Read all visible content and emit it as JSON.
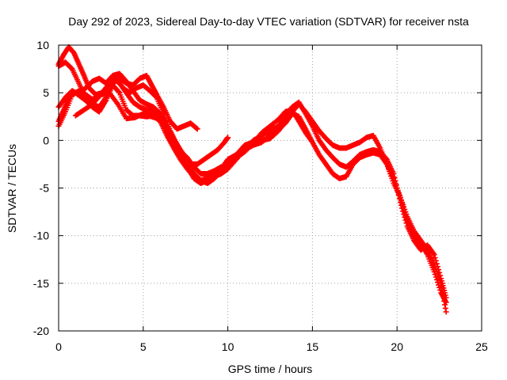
{
  "chart_data": {
    "type": "scatter",
    "title": "Day 292 of 2023, Sidereal Day-to-day VTEC variation (SDTVAR) for receiver nsta",
    "xlabel": "GPS time / hours",
    "ylabel": "SDTVAR / TECUs",
    "xlim": [
      0,
      25
    ],
    "ylim": [
      -20,
      10
    ],
    "xticks": [
      0,
      5,
      10,
      15,
      20,
      25
    ],
    "yticks": [
      -20,
      -15,
      -10,
      -5,
      0,
      5,
      10
    ],
    "xtick_labels": [
      "0",
      "5",
      "10",
      "15",
      "20",
      "25"
    ],
    "ytick_labels": [
      "-20",
      "-15",
      "-10",
      "-5",
      "0",
      "5",
      "10"
    ],
    "grid": true,
    "marker": "+",
    "series": [
      {
        "name": "track-1",
        "color": "#ff0000",
        "points": [
          [
            0.0,
            2.0
          ],
          [
            0.3,
            3.2
          ],
          [
            0.6,
            4.5
          ],
          [
            1.0,
            5.0
          ],
          [
            1.3,
            4.6
          ],
          [
            1.6,
            4.2
          ],
          [
            2.0,
            3.5
          ],
          [
            2.4,
            3.0
          ],
          [
            2.8,
            4.2
          ],
          [
            3.2,
            5.8
          ],
          [
            3.6,
            5.0
          ],
          [
            4.0,
            3.2
          ],
          [
            4.4,
            2.6
          ],
          [
            4.8,
            2.6
          ],
          [
            5.2,
            2.5
          ],
          [
            5.6,
            2.6
          ],
          [
            6.0,
            2.0
          ],
          [
            6.4,
            0.5
          ],
          [
            6.8,
            -0.8
          ],
          [
            7.2,
            -2.0
          ],
          [
            7.6,
            -3.0
          ],
          [
            8.0,
            -3.8
          ],
          [
            8.4,
            -4.2
          ],
          [
            8.8,
            -4.0
          ],
          [
            9.2,
            -3.5
          ],
          [
            9.6,
            -3.0
          ],
          [
            10.0,
            -2.0
          ],
          [
            10.5,
            -1.5
          ],
          [
            11.0,
            -0.5
          ],
          [
            11.5,
            -0.2
          ],
          [
            12.0,
            0.0
          ],
          [
            12.5,
            0.2
          ],
          [
            13.0,
            1.0
          ],
          [
            13.4,
            2.0
          ],
          [
            13.8,
            3.0
          ],
          [
            14.2,
            3.8
          ],
          [
            14.6,
            3.0
          ],
          [
            15.0,
            2.0
          ],
          [
            15.4,
            1.0
          ],
          [
            15.8,
            0.2
          ],
          [
            16.2,
            -0.5
          ],
          [
            16.6,
            -0.8
          ],
          [
            17.0,
            -0.8
          ],
          [
            17.4,
            -0.5
          ],
          [
            17.8,
            -0.2
          ],
          [
            18.2,
            0.3
          ],
          [
            18.6,
            0.5
          ],
          [
            19.0,
            -0.8
          ],
          [
            19.4,
            -2.5
          ],
          [
            19.8,
            -4.0
          ],
          [
            20.2,
            -6.0
          ],
          [
            20.6,
            -8.0
          ],
          [
            21.0,
            -9.5
          ],
          [
            21.4,
            -10.5
          ],
          [
            21.8,
            -11.5
          ],
          [
            22.2,
            -13.0
          ],
          [
            22.6,
            -15.0
          ],
          [
            22.9,
            -18.0
          ]
        ]
      },
      {
        "name": "track-2",
        "color": "#ff0000",
        "points": [
          [
            0.0,
            1.5
          ],
          [
            0.4,
            3.0
          ],
          [
            0.8,
            4.8
          ],
          [
            1.2,
            5.2
          ],
          [
            1.6,
            4.8
          ],
          [
            2.0,
            4.3
          ],
          [
            2.4,
            4.7
          ],
          [
            2.8,
            5.5
          ],
          [
            3.2,
            6.5
          ],
          [
            3.6,
            6.0
          ],
          [
            4.0,
            5.0
          ],
          [
            4.4,
            4.0
          ],
          [
            4.8,
            3.5
          ],
          [
            5.2,
            3.2
          ],
          [
            5.6,
            3.0
          ],
          [
            6.0,
            2.5
          ],
          [
            6.4,
            1.5
          ],
          [
            6.8,
            0.2
          ],
          [
            7.2,
            -1.0
          ],
          [
            7.6,
            -2.5
          ],
          [
            8.0,
            -3.5
          ],
          [
            8.4,
            -4.2
          ],
          [
            8.8,
            -4.5
          ],
          [
            9.2,
            -4.0
          ],
          [
            9.6,
            -3.2
          ],
          [
            10.0,
            -2.5
          ],
          [
            10.5,
            -1.5
          ],
          [
            11.0,
            -1.0
          ],
          [
            11.5,
            0.0
          ],
          [
            12.0,
            0.5
          ],
          [
            12.5,
            1.0
          ],
          [
            13.0,
            1.5
          ],
          [
            13.4,
            2.5
          ],
          [
            13.8,
            3.5
          ],
          [
            14.2,
            4.0
          ],
          [
            14.6,
            2.8
          ],
          [
            15.0,
            1.5
          ],
          [
            15.4,
            0.0
          ],
          [
            15.8,
            -1.0
          ],
          [
            16.2,
            -1.8
          ],
          [
            16.6,
            -2.5
          ],
          [
            17.0,
            -2.8
          ],
          [
            17.4,
            -2.2
          ],
          [
            17.8,
            -1.5
          ],
          [
            18.2,
            -1.2
          ],
          [
            18.6,
            -1.0
          ],
          [
            19.0,
            -1.2
          ],
          [
            19.4,
            -2.0
          ],
          [
            19.8,
            -3.5
          ],
          [
            20.2,
            -6.5
          ],
          [
            20.6,
            -9.0
          ],
          [
            21.0,
            -10.5
          ],
          [
            21.4,
            -11.5
          ],
          [
            21.8,
            -11.0
          ],
          [
            22.2,
            -12.0
          ],
          [
            22.6,
            -14.5
          ],
          [
            22.9,
            -16.5
          ]
        ]
      },
      {
        "name": "track-3",
        "color": "#ff0000",
        "points": [
          [
            0.0,
            3.5
          ],
          [
            0.4,
            4.5
          ],
          [
            0.8,
            5.2
          ],
          [
            1.2,
            4.8
          ],
          [
            1.6,
            5.5
          ],
          [
            2.0,
            6.2
          ],
          [
            2.4,
            6.5
          ],
          [
            2.8,
            6.0
          ],
          [
            3.2,
            6.8
          ],
          [
            3.6,
            7.0
          ],
          [
            4.0,
            6.2
          ],
          [
            4.4,
            5.2
          ],
          [
            4.8,
            4.2
          ],
          [
            5.2,
            3.8
          ],
          [
            5.6,
            3.5
          ],
          [
            6.0,
            2.8
          ],
          [
            6.4,
            1.5
          ],
          [
            6.8,
            0.0
          ],
          [
            7.2,
            -1.5
          ],
          [
            7.6,
            -2.8
          ],
          [
            8.0,
            -4.0
          ],
          [
            8.4,
            -4.5
          ],
          [
            8.8,
            -4.2
          ],
          [
            9.2,
            -3.8
          ],
          [
            9.6,
            -3.5
          ],
          [
            10.0,
            -3.0
          ],
          [
            10.5,
            -2.0
          ],
          [
            11.0,
            -1.0
          ],
          [
            11.5,
            -0.5
          ],
          [
            12.0,
            -0.2
          ],
          [
            12.5,
            0.5
          ],
          [
            13.0,
            1.2
          ],
          [
            13.4,
            1.8
          ],
          [
            13.8,
            2.8
          ],
          [
            14.2,
            2.5
          ],
          [
            14.6,
            1.2
          ],
          [
            15.0,
            -0.2
          ],
          [
            15.4,
            -1.5
          ],
          [
            15.8,
            -2.5
          ],
          [
            16.2,
            -3.5
          ],
          [
            16.6,
            -4.0
          ],
          [
            17.0,
            -3.8
          ],
          [
            17.4,
            -2.5
          ],
          [
            17.8,
            -1.8
          ],
          [
            18.2,
            -1.5
          ],
          [
            18.6,
            -1.3
          ],
          [
            19.0,
            -1.5
          ],
          [
            19.4,
            -2.5
          ],
          [
            19.8,
            -4.5
          ],
          [
            20.2,
            -6.0
          ],
          [
            20.6,
            -8.5
          ],
          [
            21.0,
            -10.0
          ],
          [
            21.4,
            -10.8
          ],
          [
            21.8,
            -12.0
          ],
          [
            22.2,
            -13.8
          ],
          [
            22.6,
            -16.0
          ],
          [
            22.9,
            -17.0
          ]
        ]
      },
      {
        "name": "track-4",
        "color": "#ff0000",
        "points": [
          [
            0.0,
            8.0
          ],
          [
            0.3,
            9.0
          ],
          [
            0.6,
            9.8
          ],
          [
            0.9,
            9.2
          ],
          [
            1.2,
            8.0
          ],
          [
            1.5,
            6.8
          ],
          [
            1.8,
            5.5
          ],
          [
            2.2,
            4.8
          ],
          [
            2.6,
            5.0
          ],
          [
            3.0,
            6.0
          ],
          [
            3.4,
            6.5
          ],
          [
            3.8,
            5.5
          ],
          [
            4.2,
            5.0
          ],
          [
            4.6,
            5.5
          ],
          [
            5.0,
            5.8
          ],
          [
            5.4,
            5.2
          ],
          [
            5.8,
            4.5
          ],
          [
            6.2,
            2.8
          ],
          [
            6.6,
            1.0
          ],
          [
            7.0,
            -0.5
          ],
          [
            7.4,
            -1.5
          ],
          [
            7.8,
            -2.5
          ],
          [
            8.2,
            -2.5
          ],
          [
            8.6,
            -2.0
          ],
          [
            9.0,
            -1.5
          ],
          [
            9.4,
            -1.0
          ],
          [
            9.8,
            -0.2
          ],
          [
            10.0,
            0.3
          ]
        ]
      },
      {
        "name": "track-5",
        "color": "#ff0000",
        "points": [
          [
            0.0,
            7.8
          ],
          [
            0.4,
            8.2
          ],
          [
            0.8,
            7.5
          ],
          [
            1.2,
            6.0
          ],
          [
            1.6,
            4.5
          ],
          [
            2.0,
            3.8
          ],
          [
            2.4,
            3.5
          ],
          [
            2.8,
            4.5
          ],
          [
            3.2,
            6.0
          ],
          [
            3.6,
            6.5
          ],
          [
            4.0,
            6.0
          ],
          [
            4.4,
            5.8
          ],
          [
            4.8,
            6.5
          ],
          [
            5.2,
            6.8
          ],
          [
            5.5,
            5.8
          ],
          [
            5.8,
            4.8
          ],
          [
            6.2,
            3.5
          ],
          [
            6.6,
            2.0
          ],
          [
            7.0,
            1.2
          ],
          [
            7.4,
            1.5
          ],
          [
            7.8,
            1.8
          ],
          [
            8.2,
            1.2
          ]
        ]
      },
      {
        "name": "track-6",
        "color": "#ff0000",
        "points": [
          [
            1.0,
            2.6
          ],
          [
            1.5,
            3.2
          ],
          [
            2.0,
            3.8
          ],
          [
            2.5,
            4.8
          ],
          [
            3.0,
            5.0
          ],
          [
            3.5,
            3.8
          ],
          [
            4.0,
            2.3
          ],
          [
            4.5,
            2.4
          ],
          [
            5.0,
            2.8
          ],
          [
            5.5,
            2.5
          ],
          [
            6.0,
            2.2
          ],
          [
            6.4,
            1.0
          ],
          [
            6.8,
            -0.3
          ],
          [
            7.2,
            -1.2
          ],
          [
            7.6,
            -1.8
          ],
          [
            8.0,
            -2.8
          ],
          [
            8.4,
            -3.5
          ],
          [
            8.8,
            -3.5
          ],
          [
            9.2,
            -3.2
          ],
          [
            9.6,
            -2.8
          ],
          [
            10.0,
            -2.5
          ],
          [
            10.5,
            -1.8
          ],
          [
            11.0,
            -1.2
          ],
          [
            11.5,
            -0.3
          ],
          [
            12.0,
            0.8
          ],
          [
            12.5,
            1.5
          ],
          [
            13.0,
            2.2
          ],
          [
            13.4,
            3.0
          ],
          [
            13.8,
            3.2
          ],
          [
            14.2,
            2.0
          ],
          [
            14.6,
            0.8
          ],
          [
            15.0,
            -0.2
          ]
        ]
      }
    ]
  }
}
